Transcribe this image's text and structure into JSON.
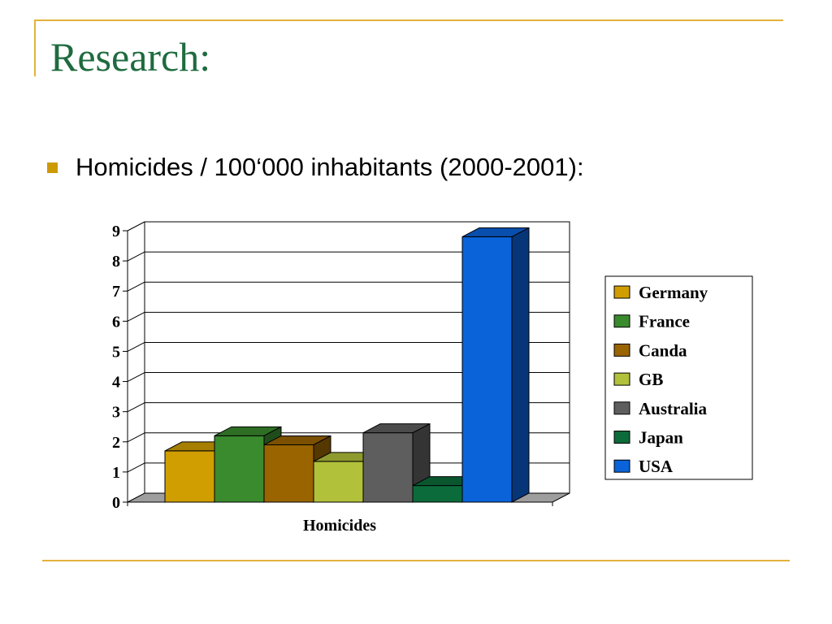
{
  "slide": {
    "title": "Research:",
    "bullet": "Homicides / 100‘000 inhabitants (2000-2001):",
    "accent_color": "#e3b23c",
    "title_color": "#1f6b3f",
    "bullet_color": "#cc9a06"
  },
  "chart_data": {
    "type": "bar",
    "style": "3d-clustered",
    "categories": [
      "Homicides"
    ],
    "xlabel": "Homicides",
    "ylabel": "",
    "ylim": [
      0,
      9
    ],
    "yticks": [
      "0",
      "1",
      "2",
      "3",
      "4",
      "5",
      "6",
      "7",
      "8",
      "9"
    ],
    "grid": true,
    "legend_position": "right",
    "series": [
      {
        "name": "Germany",
        "values": [
          1.7
        ],
        "color": "#d09e00"
      },
      {
        "name": "France",
        "values": [
          2.2
        ],
        "color": "#3a8a2e"
      },
      {
        "name": "Canda",
        "values": [
          1.9
        ],
        "color": "#9a6400"
      },
      {
        "name": "GB",
        "values": [
          1.35
        ],
        "color": "#b2c13a"
      },
      {
        "name": "Australia",
        "values": [
          2.3
        ],
        "color": "#5e5e5e"
      },
      {
        "name": "Japan",
        "values": [
          0.55
        ],
        "color": "#0c6b3a"
      },
      {
        "name": "USA",
        "values": [
          8.8
        ],
        "color": "#0a63d8"
      }
    ]
  }
}
